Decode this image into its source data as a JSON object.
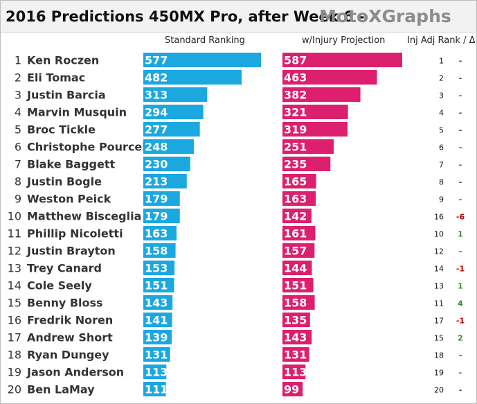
{
  "header": {
    "title": "2016 Predictions 450MX Pro, after Week 6  -",
    "brand": "MotoXGraphs"
  },
  "columns": {
    "standard": "Standard Ranking",
    "injury": "w/Injury Projection",
    "adj": "Inj Adj Rank / Δ"
  },
  "colors": {
    "standard_bar": "#1ba8e0",
    "injury_bar": "#dc1f6e",
    "delta_down": "#c00000",
    "delta_up": "#3a8a3a",
    "delta_none": "#444444"
  },
  "chart_data": {
    "type": "bar",
    "categories": [
      "Ken Roczen",
      "Eli Tomac",
      "Justin Barcia",
      "Marvin Musquin",
      "Broc Tickle",
      "Christophe Pourcel",
      "Blake Baggett",
      "Justin Bogle",
      "Weston Peick",
      "Matthew Bisceglia",
      "Phillip Nicoletti",
      "Justin Brayton",
      "Trey Canard",
      "Cole Seely",
      "Benny Bloss",
      "Fredrik Noren",
      "Andrew Short",
      "Ryan Dungey",
      "Jason Anderson",
      "Ben LaMay"
    ],
    "ranks": [
      "1",
      "2",
      "3",
      "4",
      "5",
      "6",
      "7",
      "8",
      "9",
      "10",
      "11",
      "12",
      "13",
      "14",
      "15",
      "16",
      "17",
      "18",
      "19",
      "20"
    ],
    "series": [
      {
        "name": "Standard Ranking",
        "values": [
          577,
          482,
          313,
          294,
          277,
          248,
          230,
          213,
          179,
          179,
          163,
          158,
          153,
          151,
          143,
          141,
          139,
          131,
          113,
          111
        ]
      },
      {
        "name": "w/Injury Projection",
        "values": [
          587,
          463,
          382,
          321,
          319,
          251,
          235,
          165,
          163,
          142,
          161,
          157,
          144,
          151,
          158,
          135,
          143,
          131,
          113,
          99
        ]
      }
    ],
    "inj_adj_rank": [
      "1",
      "2",
      "3",
      "4",
      "5",
      "6",
      "7",
      "8",
      "9",
      "16",
      "10",
      "12",
      "14",
      "13",
      "11",
      "17",
      "15",
      "18",
      "19",
      "20"
    ],
    "delta": [
      "-",
      "-",
      "-",
      "-",
      "-",
      "-",
      "-",
      "-",
      "-",
      "-6",
      "1",
      "-",
      "-1",
      "1",
      "4",
      "-1",
      "2",
      "-",
      "-",
      "-"
    ]
  }
}
